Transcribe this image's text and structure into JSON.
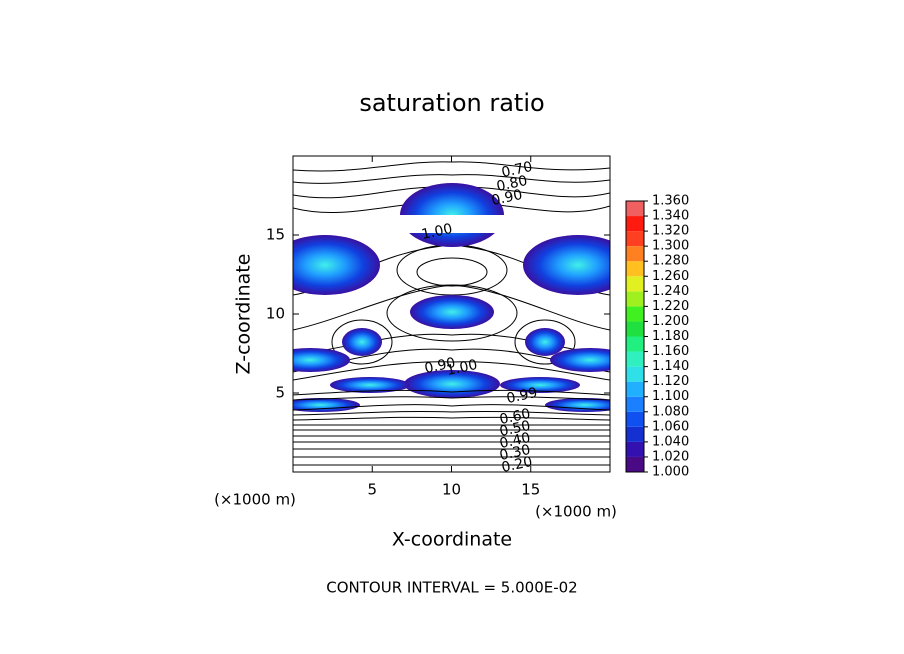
{
  "chart_data": {
    "type": "contour",
    "title": "saturation ratio",
    "x_label": "X-coordinate",
    "y_label": "Z-coordinate",
    "x_unit": "(×1000 m)",
    "y_unit": "(×1000 m)",
    "xlim": [
      0,
      20
    ],
    "xticks": [
      5,
      10,
      15
    ],
    "ylim": [
      0,
      20
    ],
    "yticks": [
      5,
      10,
      15
    ],
    "colorbar": {
      "levels": [
        {
          "value": 1.0,
          "label": "1.000"
        },
        {
          "value": 1.02,
          "label": "1.020"
        },
        {
          "value": 1.04,
          "label": "1.040"
        },
        {
          "value": 1.06,
          "label": "1.060"
        },
        {
          "value": 1.08,
          "label": "1.080"
        },
        {
          "value": 1.1,
          "label": "1.100"
        },
        {
          "value": 1.12,
          "label": "1.120"
        },
        {
          "value": 1.14,
          "label": "1.140"
        },
        {
          "value": 1.16,
          "label": "1.160"
        },
        {
          "value": 1.18,
          "label": "1.180"
        },
        {
          "value": 1.2,
          "label": "1.200"
        },
        {
          "value": 1.22,
          "label": "1.220"
        },
        {
          "value": 1.24,
          "label": "1.240"
        },
        {
          "value": 1.26,
          "label": "1.260"
        },
        {
          "value": 1.28,
          "label": "1.280"
        },
        {
          "value": 1.3,
          "label": "1.300"
        },
        {
          "value": 1.32,
          "label": "1.320"
        },
        {
          "value": 1.34,
          "label": "1.340"
        },
        {
          "value": 1.36,
          "label": "1.360"
        }
      ],
      "colors": [
        "#4b0a85",
        "#3310b0",
        "#1530d0",
        "#1050f0",
        "#1a80ff",
        "#20b0ff",
        "#30e0e8",
        "#30f0c0",
        "#20f080",
        "#20e040",
        "#40f020",
        "#a0f020",
        "#e0f020",
        "#ffc020",
        "#ff8020",
        "#ff4020",
        "#ff1a10",
        "#f06060"
      ]
    },
    "contour_labels": [
      "0.70",
      "0.80",
      "0.90",
      "1.00",
      "0.90",
      "1.00",
      "0.99",
      "0.60",
      "0.50",
      "0.40",
      "0.30",
      "0.20"
    ],
    "footer": "CONTOUR INTERVAL = 5.000E-02"
  }
}
